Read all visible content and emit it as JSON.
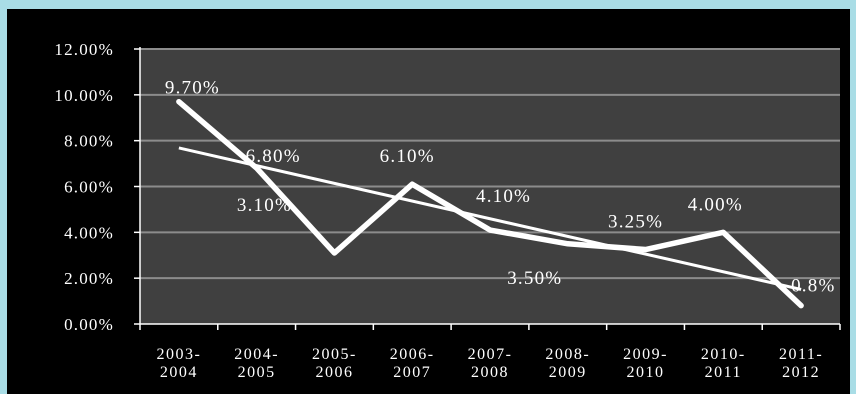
{
  "chart_data": {
    "type": "line",
    "categories": [
      [
        "2003-",
        "2004"
      ],
      [
        "2004-",
        "2005"
      ],
      [
        "2005-",
        "2006"
      ],
      [
        "2006-",
        "2007"
      ],
      [
        "2007-",
        "2008"
      ],
      [
        "2008-",
        "2009"
      ],
      [
        "2009-",
        "2010"
      ],
      [
        "2010-",
        "2011"
      ],
      [
        "2011-",
        "2012"
      ]
    ],
    "series": [
      {
        "values": [
          9.7,
          6.8,
          3.1,
          6.1,
          4.1,
          3.5,
          3.25,
          4.0,
          0.8
        ],
        "data_labels": [
          "9.70%",
          "6.80%",
          "3.10%",
          "6.10%",
          "4.10%",
          "3.50%",
          "3.25%",
          "4.00%",
          "0.8%"
        ],
        "color": "#ffffff"
      }
    ],
    "trendline": {
      "type": "linear",
      "color": "#ffffff"
    },
    "yticks": [
      "0.00%",
      "2.00%",
      "4.00%",
      "6.00%",
      "8.00%",
      "10.00%",
      "12.00%"
    ],
    "ylim": [
      0,
      12
    ],
    "title": "",
    "xlabel": "",
    "ylabel": "",
    "grid": true,
    "legend": "none",
    "colors": {
      "plot_background": "#404040",
      "figure_background": "#000000",
      "page_background": "#a9dde6",
      "gridline": "#8c8c8c"
    }
  }
}
